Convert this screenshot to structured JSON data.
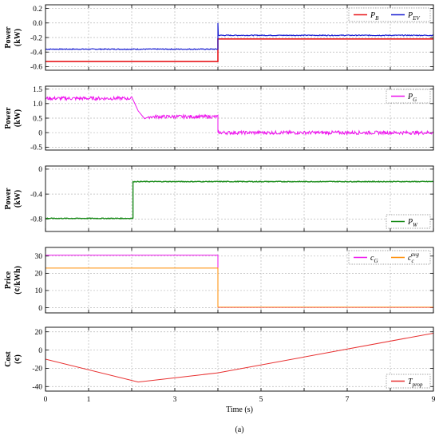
{
  "figure": {
    "caption": "(a)"
  },
  "chart_data": [
    {
      "type": "line",
      "ylabel_lines": [
        "Power",
        "(kW)"
      ],
      "xlim": [
        0,
        9
      ],
      "ylim": [
        -0.65,
        0.25
      ],
      "yticks": [
        0.2,
        0.0,
        -0.2,
        -0.4,
        -0.6
      ],
      "ytick_labels": [
        "0.2",
        "0.0",
        "-0.2",
        "-0.4",
        "-0.6"
      ],
      "grid": true,
      "legend": {
        "placement": "top-right",
        "ncol": 2
      },
      "series": [
        {
          "name": "P",
          "subscript": "B",
          "color": "#e8191d",
          "width": 1.6,
          "points": [
            [
              0,
              -0.53
            ],
            [
              4,
              -0.53
            ],
            [
              4,
              -0.22
            ],
            [
              9,
              -0.22
            ]
          ]
        },
        {
          "name": "P",
          "subscript": "EV",
          "color": "#1a1fd1",
          "width": 1.2,
          "noise": 0.006,
          "points": [
            [
              0,
              -0.36
            ],
            [
              4,
              -0.36
            ],
            [
              4,
              0.0
            ],
            [
              4.01,
              -0.17
            ],
            [
              9,
              -0.17
            ]
          ]
        }
      ]
    },
    {
      "type": "line",
      "ylabel_lines": [
        "Power",
        "(kW)"
      ],
      "xlim": [
        0,
        9
      ],
      "ylim": [
        -0.6,
        1.6
      ],
      "yticks": [
        1.5,
        1.0,
        0.5,
        0.0,
        -0.5
      ],
      "ytick_labels": [
        "1.5",
        "1.0",
        "0.5",
        "0",
        "-0.5"
      ],
      "grid": true,
      "legend": {
        "placement": "top-right",
        "ncol": 1
      },
      "series": [
        {
          "name": "P",
          "subscript": "G",
          "color": "#ee12ee",
          "width": 1.0,
          "noise": 0.06,
          "points": [
            [
              0,
              1.18
            ],
            [
              2.0,
              1.18
            ],
            [
              2.15,
              0.75
            ],
            [
              2.3,
              0.48
            ],
            [
              2.4,
              0.55
            ],
            [
              4.0,
              0.55
            ],
            [
              4.0,
              0.0
            ],
            [
              9,
              0.0
            ]
          ]
        }
      ]
    },
    {
      "type": "line",
      "ylabel_lines": [
        "Power",
        "(kW)"
      ],
      "xlim": [
        0,
        9
      ],
      "ylim": [
        -1.0,
        0.05
      ],
      "yticks": [
        0.0,
        -0.4,
        -0.8
      ],
      "ytick_labels": [
        "0",
        "-0.4",
        "-0.8"
      ],
      "grid": true,
      "legend": {
        "placement": "bottom-right",
        "ncol": 1
      },
      "series": [
        {
          "name": "P",
          "subscript": "W",
          "color": "#178a17",
          "width": 1.4,
          "noise": 0.006,
          "points": [
            [
              0,
              -0.79
            ],
            [
              2.03,
              -0.79
            ],
            [
              2.03,
              -0.2
            ],
            [
              9,
              -0.2
            ]
          ]
        }
      ]
    },
    {
      "type": "line",
      "ylabel_lines": [
        "Price",
        "(¢/kWh)"
      ],
      "xlim": [
        0,
        9
      ],
      "ylim": [
        -3,
        35
      ],
      "yticks": [
        30,
        20,
        10,
        0
      ],
      "ytick_labels": [
        "30",
        "20",
        "10",
        "0"
      ],
      "grid": true,
      "legend": {
        "placement": "top-right",
        "ncol": 2
      },
      "series": [
        {
          "name": "c",
          "subscript": "G",
          "color": "#ee12ee",
          "width": 1.0,
          "points": [
            [
              0,
              30.5
            ],
            [
              4,
              30.5
            ],
            [
              4,
              0.2
            ],
            [
              9,
              0.2
            ]
          ]
        },
        {
          "name": "c",
          "subscript": "c",
          "superscript": "avg",
          "color": "#ff8c00",
          "width": 1.0,
          "points": [
            [
              0,
              23
            ],
            [
              4,
              23
            ],
            [
              4,
              0.3
            ],
            [
              9,
              0.3
            ]
          ]
        }
      ]
    },
    {
      "type": "line",
      "ylabel_lines": [
        "Cost",
        "(¢)"
      ],
      "xlabel": "Time (s)",
      "xlim": [
        0,
        9
      ],
      "xticks": [
        0,
        1,
        3,
        5,
        7,
        9
      ],
      "xtick_labels": [
        "0",
        "1",
        "3",
        "5",
        "7",
        "9"
      ],
      "ylim": [
        -45,
        25
      ],
      "yticks": [
        20,
        0,
        -20,
        -40
      ],
      "ytick_labels": [
        "20",
        "0",
        "-20",
        "-40"
      ],
      "grid": true,
      "legend": {
        "placement": "bottom-right",
        "ncol": 1
      },
      "series": [
        {
          "name": "T",
          "subscript": "prop",
          "color": "#e83030",
          "width": 1.0,
          "points": [
            [
              0,
              -10
            ],
            [
              2.15,
              -35
            ],
            [
              4,
              -25
            ],
            [
              9,
              18.5
            ]
          ]
        }
      ]
    }
  ]
}
